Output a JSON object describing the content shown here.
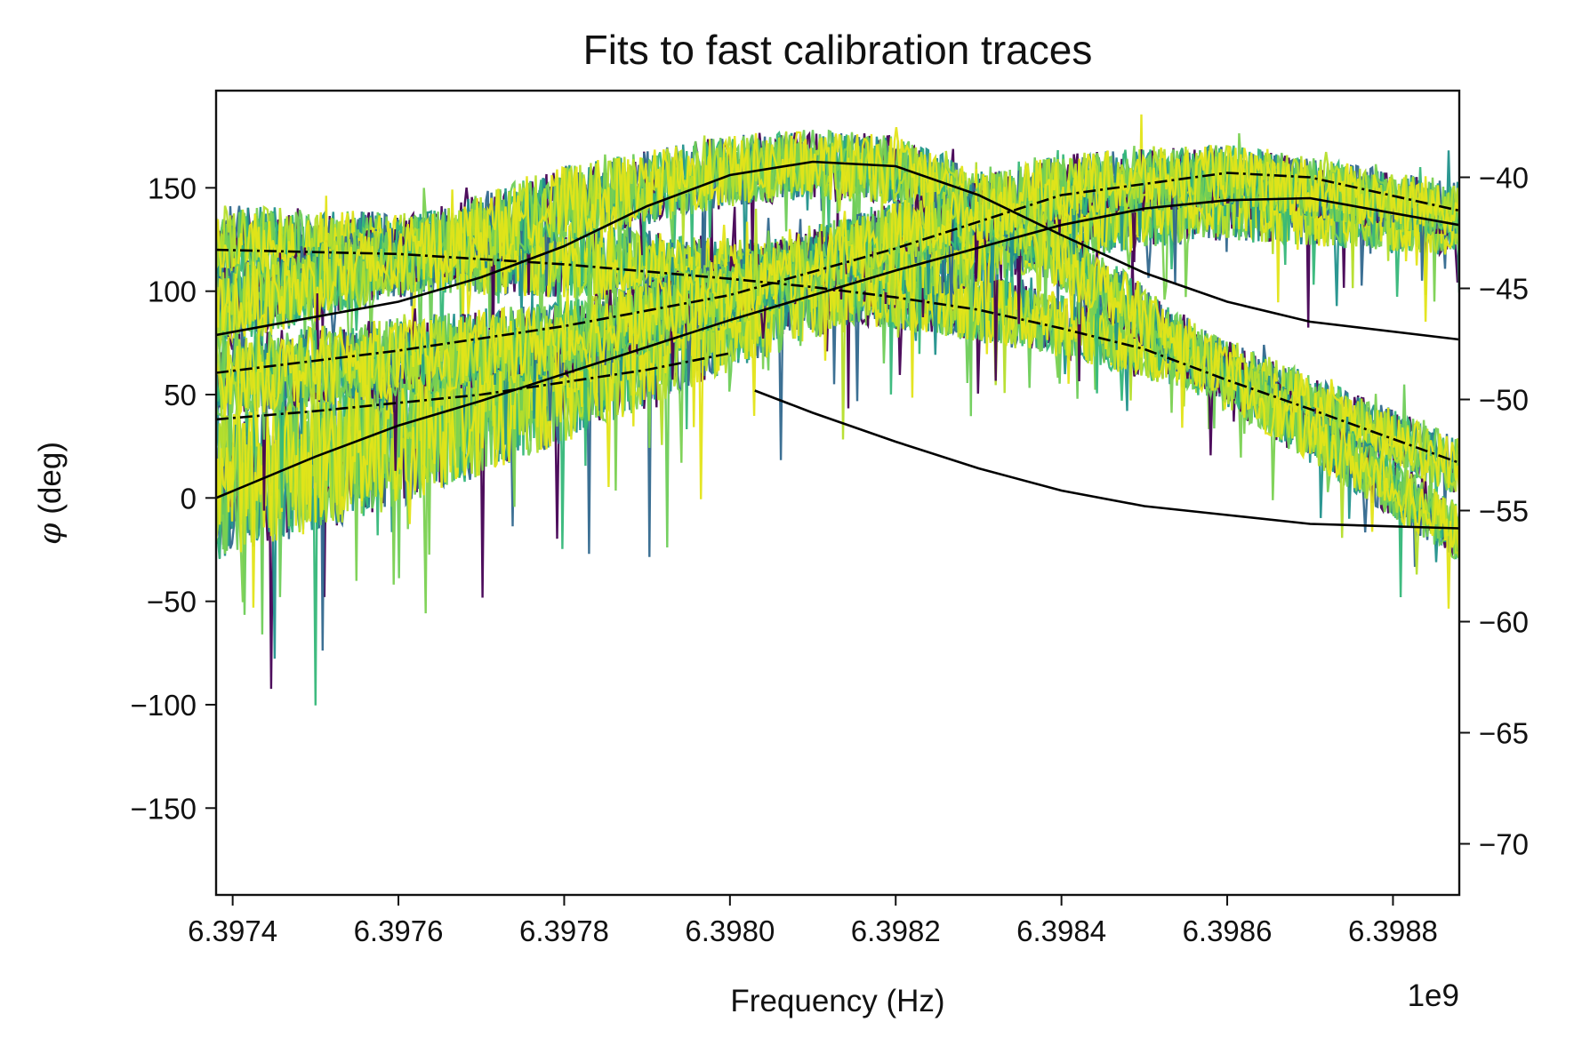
{
  "chart_data": {
    "type": "line",
    "title": "Fits to fast calibration traces",
    "xlabel": "Frequency (Hz)",
    "ylabel_symbol": "φ",
    "ylabel_rest": " (deg)",
    "x_offset_label": "1e9",
    "xlim": [
      6397380000.0,
      6398880000.0
    ],
    "ylim_left": [
      -192,
      197
    ],
    "ylim_right": [
      -72.3,
      -36.1
    ],
    "x_ticks": [
      6397400000.0,
      6397600000.0,
      6397800000.0,
      6398000000.0,
      6398200000.0,
      6398400000.0,
      6398600000.0,
      6398800000.0
    ],
    "x_tick_labels": [
      "6.3974",
      "6.3976",
      "6.3978",
      "6.3980",
      "6.3982",
      "6.3984",
      "6.3986",
      "6.3988"
    ],
    "y_ticks_left": [
      150,
      100,
      50,
      0,
      -50,
      -100,
      -150
    ],
    "y_tick_labels_left": [
      "150",
      "100",
      "50",
      "0",
      "−50",
      "−100",
      "−150"
    ],
    "y_ticks_right": [
      -40,
      -45,
      -50,
      -55,
      -60,
      -65,
      -70
    ],
    "y_tick_labels_right": [
      "−40",
      "−45",
      "−50",
      "−55",
      "−60",
      "−65",
      "−70"
    ],
    "grid": false,
    "legend": "none",
    "colormap": [
      "#440154",
      "#3b528b",
      "#21918c",
      "#2ca58a",
      "#5ec962",
      "#7ad151",
      "#bddf26",
      "#fde725",
      "#e3e418"
    ],
    "trace_colors": [
      "#440154",
      "#31688e",
      "#21918c",
      "#35b779",
      "#6ece58",
      "#7ad151",
      "#b5de2b",
      "#e3e418"
    ],
    "fit_color": "#000000",
    "data_groups": [
      {
        "axis": "left",
        "x": [
          6397380000.0,
          6397600000.0,
          6397800000.0,
          6398000000.0,
          6398100000.0,
          6398200000.0,
          6398300000.0,
          6398400000.0,
          6398600000.0,
          6398880000.0
        ],
        "y": [
          122,
          119,
          115,
          108,
          104,
          98,
          92,
          84,
          62,
          15
        ]
      },
      {
        "axis": "left",
        "x": [
          6397380000.0,
          6397600000.0,
          6397800000.0,
          6398000000.0,
          6398200000.0,
          6398400000.0,
          6398600000.0,
          6398880000.0
        ],
        "y": [
          8,
          30,
          58,
          90,
          118,
          136,
          145,
          133
        ]
      },
      {
        "axis": "right",
        "x": [
          6397380000.0,
          6397600000.0,
          6397800000.0,
          6398000000.0,
          6398100000.0,
          6398200000.0,
          6398300000.0,
          6398400000.0,
          6398600000.0,
          6398880000.0
        ],
        "y": [
          -46.0,
          -43.7,
          -41.2,
          -39.7,
          -39.4,
          -39.7,
          -41.1,
          -43.6,
          -49.0,
          -56.0
        ]
      },
      {
        "axis": "right",
        "x": [
          6397380000.0,
          6397600000.0,
          6397800000.0,
          6398000000.0,
          6398200000.0,
          6398400000.0,
          6398600000.0,
          6398880000.0
        ],
        "y": [
          -49.0,
          -48.1,
          -47.3,
          -45.2,
          -42.6,
          -40.4,
          -39.9,
          -41.5
        ]
      }
    ],
    "fit_lines": [
      {
        "axis": "left",
        "style": "solid",
        "x": [
          6397380000.0,
          6397500000.0,
          6397600000.0,
          6397700000.0,
          6397800000.0,
          6397900000.0,
          6398000000.0,
          6398100000.0,
          6398200000.0,
          6398300000.0,
          6398400000.0,
          6398500000.0,
          6398600000.0,
          6398700000.0,
          6398880000.0
        ],
        "y": [
          0,
          20,
          35,
          47,
          60,
          73,
          86,
          98,
          110,
          121,
          132,
          140,
          144,
          145,
          132
        ]
      },
      {
        "axis": "left",
        "style": "dashdot",
        "x": [
          6397380000.0,
          6397600000.0,
          6397800000.0,
          6398000000.0,
          6398100000.0,
          6398200000.0,
          6398300000.0,
          6398400000.0,
          6398500000.0,
          6398600000.0,
          6398700000.0,
          6398880000.0
        ],
        "y": [
          120,
          118,
          113,
          106,
          102,
          97,
          91,
          82,
          72,
          57,
          43,
          17
        ]
      },
      {
        "axis": "left",
        "style": "dashdot",
        "x": [
          6397380000.0,
          6397500000.0,
          6397700000.0,
          6397900000.0,
          6398000000.0
        ],
        "y": [
          38,
          42,
          50,
          62,
          70
        ]
      },
      {
        "axis": "right",
        "style": "solid",
        "x": [
          6397380000.0,
          6397600000.0,
          6397700000.0,
          6397800000.0,
          6397900000.0,
          6398000000.0,
          6398100000.0,
          6398200000.0,
          6398300000.0,
          6398400000.0,
          6398500000.0,
          6398600000.0,
          6398700000.0,
          6398880000.0
        ],
        "y": [
          -47.1,
          -45.6,
          -44.5,
          -43.1,
          -41.3,
          -39.9,
          -39.3,
          -39.5,
          -40.8,
          -42.6,
          -44.3,
          -45.6,
          -46.5,
          -47.3
        ]
      },
      {
        "axis": "right",
        "style": "solid",
        "x": [
          6398030000.0,
          6398100000.0,
          6398200000.0,
          6398300000.0,
          6398400000.0,
          6398500000.0,
          6398600000.0,
          6398700000.0,
          6398880000.0
        ],
        "y": [
          -49.6,
          -50.6,
          -51.9,
          -53.1,
          -54.1,
          -54.8,
          -55.2,
          -55.6,
          -55.8
        ]
      },
      {
        "axis": "right",
        "style": "dashdot",
        "x": [
          6397380000.0,
          6397600000.0,
          6397800000.0,
          6398000000.0,
          6398200000.0,
          6398400000.0,
          6398600000.0,
          6398700000.0,
          6398880000.0
        ],
        "y": [
          -48.8,
          -47.8,
          -46.7,
          -45.3,
          -43.2,
          -40.8,
          -39.8,
          -40.0,
          -41.5
        ]
      }
    ]
  }
}
